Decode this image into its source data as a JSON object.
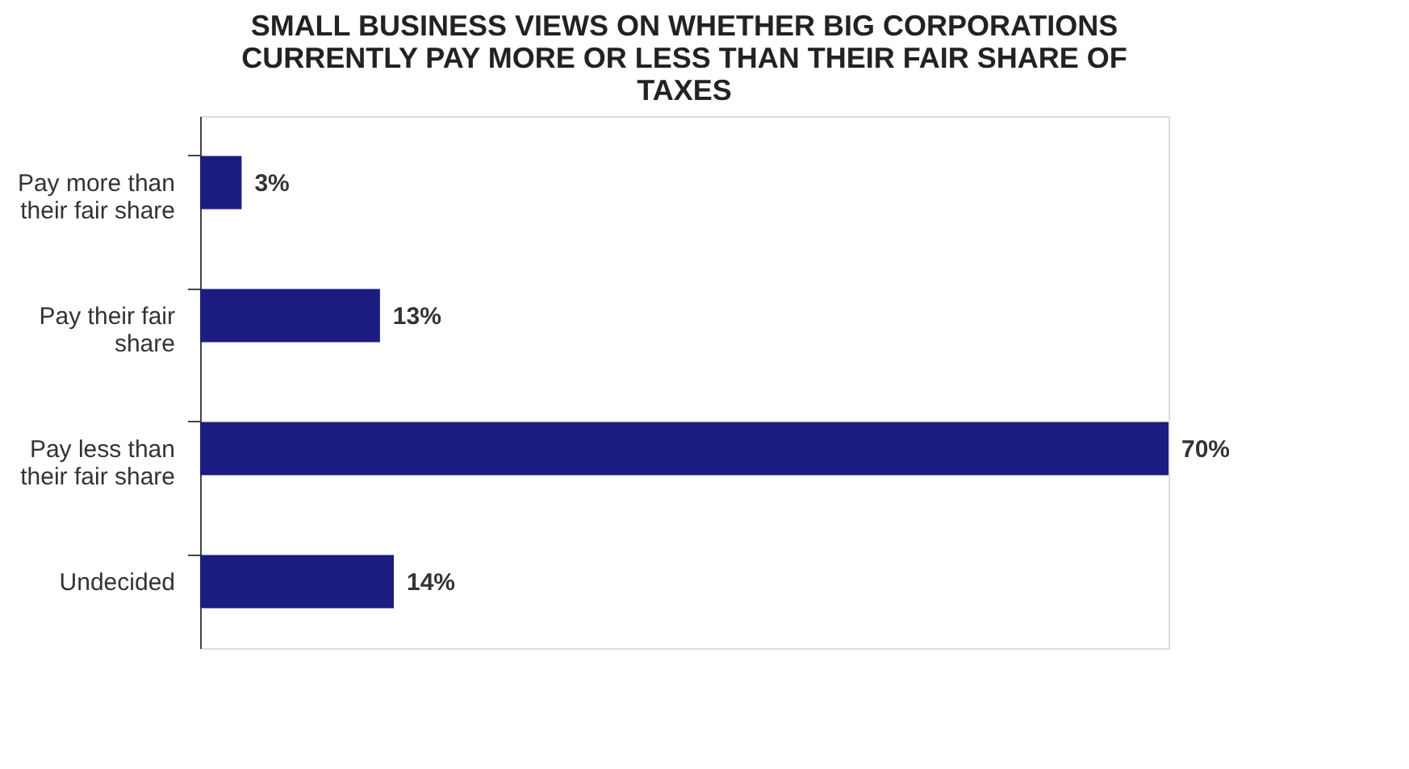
{
  "chart_data": {
    "type": "bar",
    "orientation": "horizontal",
    "title": "SMALL BUSINESS VIEWS ON WHETHER BIG CORPORATIONS CURRENTLY PAY MORE OR LESS THAN THEIR FAIR SHARE OF TAXES",
    "categories": [
      "Pay more than their fair share",
      "Pay their fair share",
      "Pay less than their fair share",
      "Undecided"
    ],
    "values": [
      3,
      13,
      70,
      14
    ],
    "color": "#1c1c80",
    "value_labels": [
      "3%",
      "13%",
      "70%",
      "14%"
    ],
    "grid": false,
    "tick_labels": "y"
  }
}
